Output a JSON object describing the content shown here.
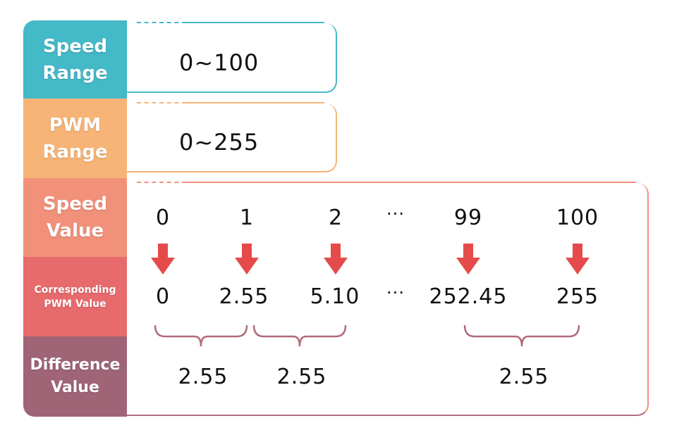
{
  "labels": {
    "speed_range": "Speed\nRange",
    "pwm_range": "PWM\nRange",
    "speed_value": "Speed\nValue",
    "corresponding_pwm": "Corresponding\nPWM Value",
    "difference_value": "Difference\nValue"
  },
  "speed_range": "0~100",
  "pwm_range": "0~255",
  "speed_values": [
    "0",
    "1",
    "2",
    "···",
    "99",
    "100"
  ],
  "pwm_values": [
    "0",
    "2.55",
    "5.10",
    "···",
    "252.45",
    "255"
  ],
  "differences": [
    "2.55",
    "2.55",
    "2.55"
  ],
  "colors": {
    "speed_range": "#44b9c8",
    "pwm_range": "#f7b477",
    "speed_value": "#f2917a",
    "corresponding_pwm": "#e76b6d",
    "difference_value": "#a06477",
    "arrow": "#e54b4b",
    "brace": "#b06a78"
  }
}
